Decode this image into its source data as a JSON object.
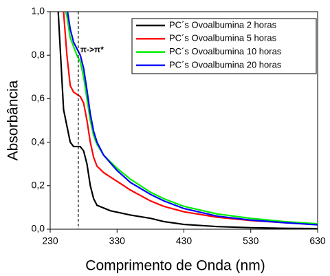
{
  "chart_data": {
    "type": "line",
    "xlabel": "Comprimento de Onda (nm)",
    "ylabel": "Absorbância",
    "xlim": [
      230,
      630
    ],
    "ylim": [
      0,
      1
    ],
    "xticks": [
      230,
      330,
      430,
      530,
      630
    ],
    "yticks": [
      {
        "value": 0,
        "label": "0,0"
      },
      {
        "value": 0.2,
        "label": "0,2"
      },
      {
        "value": 0.4,
        "label": "0,4"
      },
      {
        "value": 0.6,
        "label": "0,6"
      },
      {
        "value": 0.8,
        "label": "0,8"
      },
      {
        "value": 1,
        "label": "1,0"
      }
    ],
    "legend": "upper right",
    "vline": 272,
    "annotation": "π->π*",
    "series": [
      {
        "name": "PC´s Ovoalbumina 2 horas",
        "color": "#000000",
        "x": [
          242,
          250,
          260,
          265,
          270,
          275,
          280,
          285,
          290,
          295,
          300,
          320,
          350,
          380,
          400,
          430,
          480,
          530,
          580,
          630
        ],
        "values": [
          1.0,
          0.55,
          0.4,
          0.38,
          0.38,
          0.38,
          0.36,
          0.3,
          0.2,
          0.14,
          0.11,
          0.085,
          0.065,
          0.05,
          0.035,
          0.022,
          0.012,
          0.007,
          0.004,
          0.003
        ]
      },
      {
        "name": "PC´s Ovoalbumina 5 horas",
        "color": "#ff0000",
        "x": [
          250,
          255,
          260,
          265,
          270,
          275,
          280,
          285,
          290,
          295,
          300,
          310,
          330,
          350,
          380,
          400,
          430,
          480,
          530,
          580,
          630
        ],
        "values": [
          1.0,
          0.8,
          0.66,
          0.63,
          0.62,
          0.61,
          0.58,
          0.5,
          0.4,
          0.33,
          0.29,
          0.26,
          0.22,
          0.18,
          0.13,
          0.105,
          0.08,
          0.055,
          0.04,
          0.03,
          0.022
        ]
      },
      {
        "name": "PC´s Ovoalbumina 10 horas",
        "color": "#00ee00",
        "x": [
          253,
          255,
          260,
          265,
          270,
          275,
          280,
          285,
          290,
          295,
          300,
          310,
          330,
          350,
          380,
          400,
          430,
          480,
          530,
          580,
          630
        ],
        "values": [
          1.0,
          0.98,
          0.88,
          0.84,
          0.8,
          0.77,
          0.7,
          0.6,
          0.5,
          0.43,
          0.39,
          0.34,
          0.28,
          0.23,
          0.17,
          0.14,
          0.105,
          0.07,
          0.05,
          0.035,
          0.025
        ]
      },
      {
        "name": "PC´s Ovoalbumina 20 horas",
        "color": "#0000ff",
        "x": [
          256,
          260,
          265,
          270,
          275,
          280,
          285,
          290,
          295,
          300,
          310,
          330,
          350,
          380,
          400,
          430,
          480,
          530,
          580,
          630
        ],
        "values": [
          1.0,
          0.92,
          0.86,
          0.83,
          0.8,
          0.74,
          0.64,
          0.53,
          0.45,
          0.4,
          0.34,
          0.27,
          0.215,
          0.16,
          0.13,
          0.095,
          0.06,
          0.042,
          0.03,
          0.02
        ]
      }
    ]
  }
}
